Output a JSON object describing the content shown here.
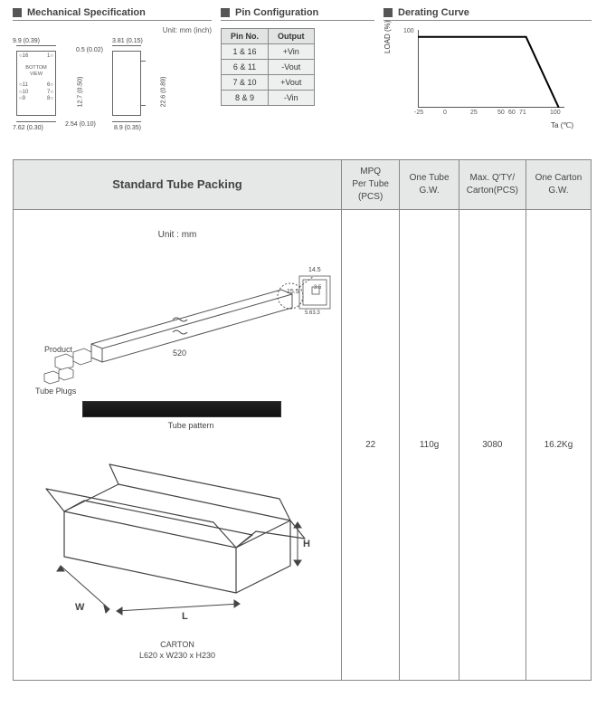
{
  "mech": {
    "header": "Mechanical Specification",
    "unit_label": "Unit: mm (inch)",
    "dims": {
      "w99": "9.9 (0.39)",
      "w762": "7.62 (0.30)",
      "w381": "3.81 (0.15)",
      "w05": "0.5 (0.02)",
      "h127": "12.7 (0.50)",
      "h254": "2.54 (0.10)",
      "h226": "22.6 (0.89)",
      "w89": "8.9 (0.35)"
    },
    "bottom_view": "BOTTOM\nVIEW",
    "pins_left": [
      "○16",
      "",
      "○11",
      "○10",
      "○9"
    ],
    "pins_right": [
      "1○",
      "",
      "6○",
      "7○",
      "8○"
    ]
  },
  "pinconf": {
    "header": "Pin Configuration",
    "columns": [
      "Pin No.",
      "Output"
    ],
    "rows": [
      [
        "1 & 16",
        "+Vin"
      ],
      [
        "6 & 11",
        "-Vout"
      ],
      [
        "7 & 10",
        "+Vout"
      ],
      [
        "8 & 9",
        "-Vin"
      ]
    ]
  },
  "derating": {
    "header": "Derating Curve",
    "ylabel": "LOAD (%)",
    "xlabel": "Ta (℃)",
    "yticks": [
      {
        "v": 100,
        "label": "100"
      }
    ],
    "xticks": [
      {
        "v": -25,
        "label": "-25"
      },
      {
        "v": 0,
        "label": "0"
      },
      {
        "v": 25,
        "label": "25"
      },
      {
        "v": 50,
        "label": "50"
      },
      {
        "v": 60,
        "label": "60"
      },
      {
        "v": 71,
        "label": "71"
      },
      {
        "v": 100,
        "label": "100"
      }
    ],
    "xlim": [
      -25,
      105
    ],
    "ylim": [
      0,
      110
    ],
    "curve_points": [
      [
        -25,
        100
      ],
      [
        71,
        100
      ],
      [
        100,
        0
      ]
    ],
    "curve_color": "#000000",
    "curve_width": 2,
    "axis_color": "#555555",
    "background": "#ffffff"
  },
  "packing": {
    "headers": {
      "main": "Standard  Tube  Packing",
      "mpq": "MPQ\nPer Tube\n(PCS)",
      "gw": "One Tube\nG.W.",
      "qty": "Max. Q'TY/\nCarton(PCS)",
      "carton_gw": "One Carton\nG.W."
    },
    "unit": "Unit : mm",
    "values": {
      "mpq": "22",
      "gw": "110g",
      "qty": "3080",
      "carton_gw": "16.2Kg"
    },
    "tube": {
      "length": "520",
      "labels": {
        "product": "Product",
        "plugs": "Tube Plugs",
        "pattern": "Tube pattern"
      },
      "cross": {
        "w": "14.5",
        "h": "15.5",
        "iw": "5.63.3",
        "ir": "3.5"
      }
    },
    "carton": {
      "W": "W",
      "L": "L",
      "H": "H",
      "caption_title": "CARTON",
      "caption_dim": "L620 x W230 x H230"
    }
  }
}
